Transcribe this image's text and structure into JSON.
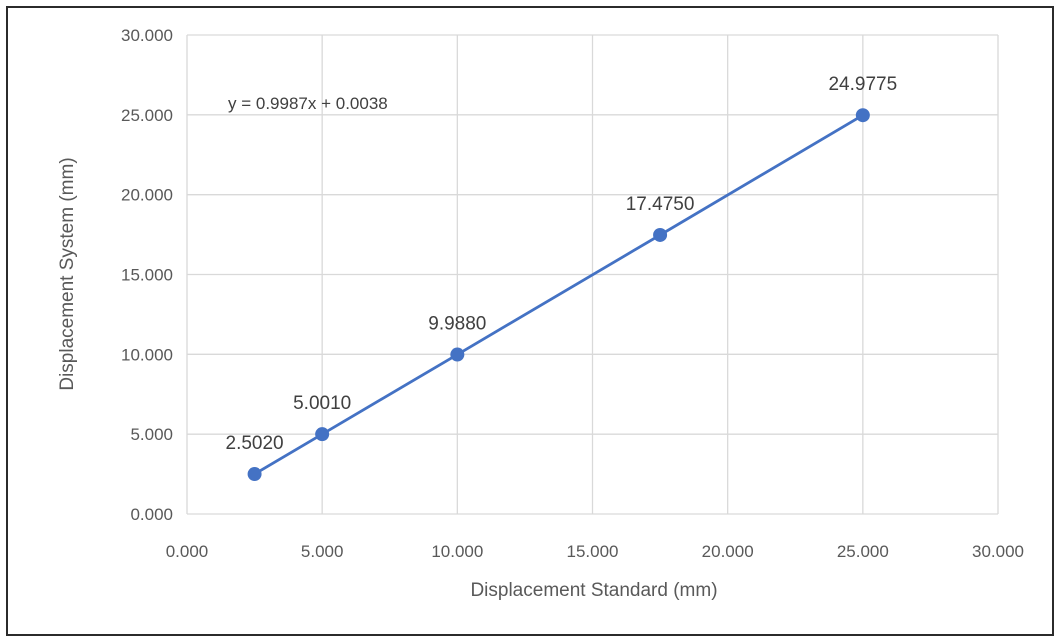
{
  "chart_data": {
    "type": "line",
    "title": "",
    "xlabel": "Displacement Standard (mm)",
    "ylabel": "Displacement System (mm)",
    "xlim": [
      0,
      30
    ],
    "ylim": [
      0,
      30
    ],
    "x_ticks": [
      0,
      5,
      10,
      15,
      20,
      25,
      30
    ],
    "y_ticks": [
      0,
      5,
      10,
      15,
      20,
      25,
      30
    ],
    "tick_format_decimals": 3,
    "grid": true,
    "legend": "none",
    "series": [
      {
        "x": [
          2.5,
          5.0,
          10.0,
          17.5,
          25.0
        ],
        "y": [
          2.502,
          5.001,
          9.988,
          17.475,
          24.9775
        ],
        "data_labels": [
          "2.5020",
          "5.0010",
          "9.9880",
          "17.4750",
          "24.9775"
        ],
        "color": "#4472C4"
      }
    ],
    "trendline_equation": "y = 0.9987x + 0.0038"
  }
}
